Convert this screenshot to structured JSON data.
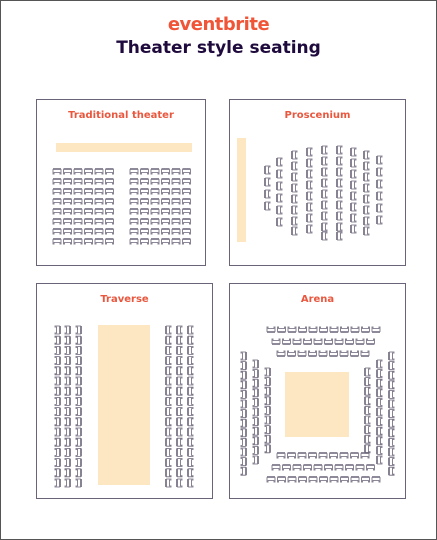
{
  "brand": {
    "logo_text": "eventbrite",
    "brand_color": "#f05537"
  },
  "page_title": "Theater style seating",
  "colors": {
    "stage": "#fde7c3",
    "seat": "#6b6478",
    "panel_border": "#6b6478",
    "heading": "#1e0a3c",
    "panel_title": "#e9573e"
  },
  "panels": [
    {
      "id": "traditional",
      "title": "Traditional theater"
    },
    {
      "id": "proscenium",
      "title": "Proscenium"
    },
    {
      "id": "traverse",
      "title": "Traverse"
    },
    {
      "id": "arena",
      "title": "Arena"
    }
  ]
}
